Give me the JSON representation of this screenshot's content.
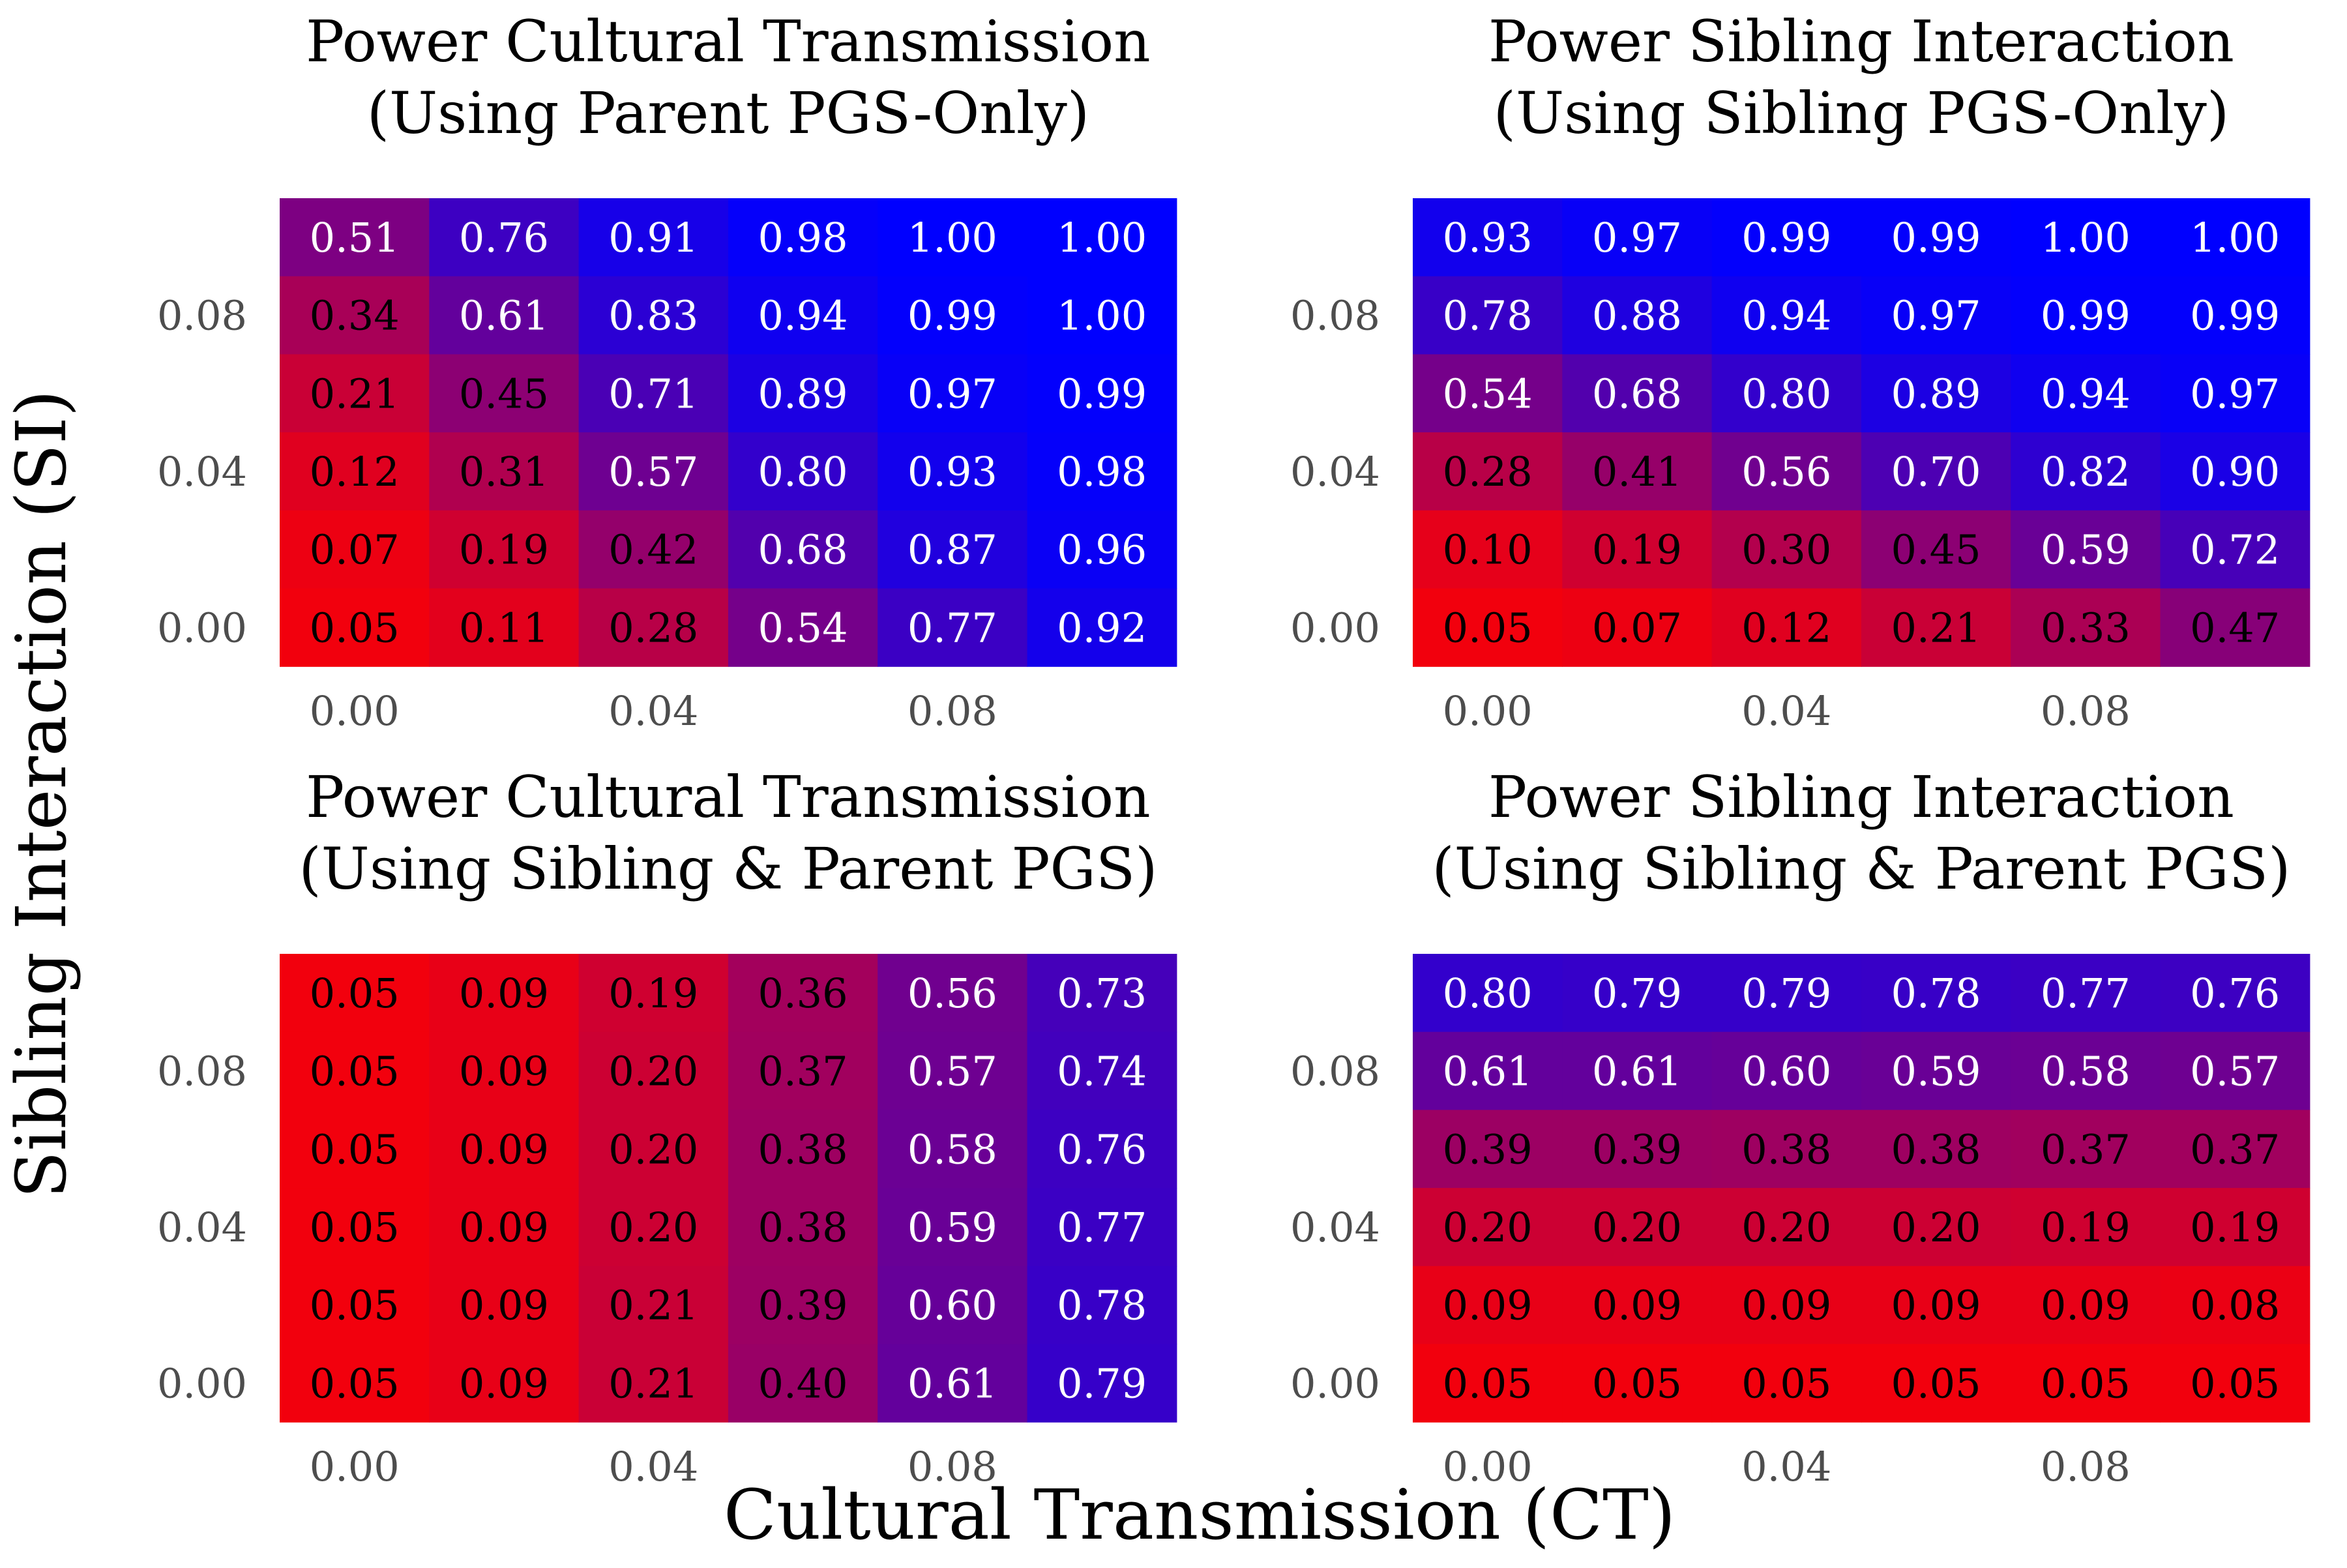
{
  "figure": {
    "xlabel": "Cultural Transmission (CT)",
    "ylabel": "Sibling Interaction (SI)"
  },
  "chart_data": [
    {
      "type": "heatmap",
      "title": "Power Cultural Transmission",
      "subtitle": "(Using Parent PGS-Only)",
      "xlabel": "Cultural Transmission (CT)",
      "ylabel": "Sibling Interaction (SI)",
      "x_ticks": [
        "0.00",
        "0.04",
        "0.08"
      ],
      "y_ticks": [
        "0.00",
        "0.04",
        "0.08"
      ],
      "x_values": [
        0.0,
        0.02,
        0.04,
        0.06,
        0.08,
        0.1
      ],
      "y_values": [
        0.0,
        0.02,
        0.04,
        0.06,
        0.08,
        0.1
      ],
      "colorscale": {
        "low": "#ff0000",
        "high": "#0000ff",
        "range": [
          0,
          1
        ]
      },
      "values": [
        [
          0.51,
          0.76,
          0.91,
          0.98,
          1.0,
          1.0
        ],
        [
          0.34,
          0.61,
          0.83,
          0.94,
          0.99,
          1.0
        ],
        [
          0.21,
          0.45,
          0.71,
          0.89,
          0.97,
          0.99
        ],
        [
          0.12,
          0.31,
          0.57,
          0.8,
          0.93,
          0.98
        ],
        [
          0.07,
          0.19,
          0.42,
          0.68,
          0.87,
          0.96
        ],
        [
          0.05,
          0.11,
          0.28,
          0.54,
          0.77,
          0.92
        ]
      ],
      "labels": [
        [
          "0.51",
          "0.76",
          "0.91",
          "0.98",
          "1.00",
          "1.00"
        ],
        [
          "0.34",
          "0.61",
          "0.83",
          "0.94",
          "0.99",
          "1.00"
        ],
        [
          "0.21",
          "0.45",
          "0.71",
          "0.89",
          "0.97",
          "0.99"
        ],
        [
          "0.12",
          "0.31",
          "0.57",
          "0.80",
          "0.93",
          "0.98"
        ],
        [
          "0.07",
          "0.19",
          "0.42",
          "0.68",
          "0.87",
          "0.96"
        ],
        [
          "0.05",
          "0.11",
          "0.28",
          "0.54",
          "0.77",
          "0.92"
        ]
      ]
    },
    {
      "type": "heatmap",
      "title": "Power Sibling Interaction",
      "subtitle": "(Using Sibling PGS-Only)",
      "xlabel": "Cultural Transmission (CT)",
      "ylabel": "Sibling Interaction (SI)",
      "x_ticks": [
        "0.00",
        "0.04",
        "0.08"
      ],
      "y_ticks": [
        "0.00",
        "0.04",
        "0.08"
      ],
      "x_values": [
        0.0,
        0.02,
        0.04,
        0.06,
        0.08,
        0.1
      ],
      "y_values": [
        0.0,
        0.02,
        0.04,
        0.06,
        0.08,
        0.1
      ],
      "colorscale": {
        "low": "#ff0000",
        "high": "#0000ff",
        "range": [
          0,
          1
        ]
      },
      "values": [
        [
          0.93,
          0.97,
          0.99,
          0.99,
          1.0,
          1.0
        ],
        [
          0.78,
          0.88,
          0.94,
          0.97,
          0.99,
          0.99
        ],
        [
          0.54,
          0.68,
          0.8,
          0.89,
          0.94,
          0.97
        ],
        [
          0.28,
          0.41,
          0.56,
          0.7,
          0.82,
          0.9
        ],
        [
          0.1,
          0.19,
          0.3,
          0.45,
          0.59,
          0.72
        ],
        [
          0.05,
          0.07,
          0.12,
          0.21,
          0.33,
          0.47
        ]
      ],
      "labels": [
        [
          "0.93",
          "0.97",
          "0.99",
          "0.99",
          "1.00",
          "1.00"
        ],
        [
          "0.78",
          "0.88",
          "0.94",
          "0.97",
          "0.99",
          "0.99"
        ],
        [
          "0.54",
          "0.68",
          "0.80",
          "0.89",
          "0.94",
          "0.97"
        ],
        [
          "0.28",
          "0.41",
          "0.56",
          "0.70",
          "0.82",
          "0.90"
        ],
        [
          "0.10",
          "0.19",
          "0.30",
          "0.45",
          "0.59",
          "0.72"
        ],
        [
          "0.05",
          "0.07",
          "0.12",
          "0.21",
          "0.33",
          "0.47"
        ]
      ]
    },
    {
      "type": "heatmap",
      "title": "Power Cultural Transmission",
      "subtitle": "(Using Sibling & Parent PGS)",
      "xlabel": "Cultural Transmission (CT)",
      "ylabel": "Sibling Interaction (SI)",
      "x_ticks": [
        "0.00",
        "0.04",
        "0.08"
      ],
      "y_ticks": [
        "0.00",
        "0.04",
        "0.08"
      ],
      "x_values": [
        0.0,
        0.02,
        0.04,
        0.06,
        0.08,
        0.1
      ],
      "y_values": [
        0.0,
        0.02,
        0.04,
        0.06,
        0.08,
        0.1
      ],
      "colorscale": {
        "low": "#ff0000",
        "high": "#0000ff",
        "range": [
          0,
          1
        ]
      },
      "values": [
        [
          0.05,
          0.09,
          0.19,
          0.36,
          0.56,
          0.73
        ],
        [
          0.05,
          0.09,
          0.2,
          0.37,
          0.57,
          0.74
        ],
        [
          0.05,
          0.09,
          0.2,
          0.38,
          0.58,
          0.76
        ],
        [
          0.05,
          0.09,
          0.2,
          0.38,
          0.59,
          0.77
        ],
        [
          0.05,
          0.09,
          0.21,
          0.39,
          0.6,
          0.78
        ],
        [
          0.05,
          0.09,
          0.21,
          0.4,
          0.61,
          0.79
        ]
      ],
      "labels": [
        [
          "0.05",
          "0.09",
          "0.19",
          "0.36",
          "0.56",
          "0.73"
        ],
        [
          "0.05",
          "0.09",
          "0.20",
          "0.37",
          "0.57",
          "0.74"
        ],
        [
          "0.05",
          "0.09",
          "0.20",
          "0.38",
          "0.58",
          "0.76"
        ],
        [
          "0.05",
          "0.09",
          "0.20",
          "0.38",
          "0.59",
          "0.77"
        ],
        [
          "0.05",
          "0.09",
          "0.21",
          "0.39",
          "0.60",
          "0.78"
        ],
        [
          "0.05",
          "0.09",
          "0.21",
          "0.40",
          "0.61",
          "0.79"
        ]
      ]
    },
    {
      "type": "heatmap",
      "title": "Power Sibling Interaction",
      "subtitle": "(Using Sibling & Parent PGS)",
      "xlabel": "Cultural Transmission (CT)",
      "ylabel": "Sibling Interaction (SI)",
      "x_ticks": [
        "0.00",
        "0.04",
        "0.08"
      ],
      "y_ticks": [
        "0.00",
        "0.04",
        "0.08"
      ],
      "x_values": [
        0.0,
        0.02,
        0.04,
        0.06,
        0.08,
        0.1
      ],
      "y_values": [
        0.0,
        0.02,
        0.04,
        0.06,
        0.08,
        0.1
      ],
      "colorscale": {
        "low": "#ff0000",
        "high": "#0000ff",
        "range": [
          0,
          1
        ]
      },
      "values": [
        [
          0.8,
          0.79,
          0.79,
          0.78,
          0.77,
          0.76
        ],
        [
          0.61,
          0.61,
          0.6,
          0.59,
          0.58,
          0.57
        ],
        [
          0.39,
          0.39,
          0.38,
          0.38,
          0.37,
          0.37
        ],
        [
          0.2,
          0.2,
          0.2,
          0.2,
          0.19,
          0.19
        ],
        [
          0.09,
          0.09,
          0.09,
          0.09,
          0.09,
          0.08
        ],
        [
          0.05,
          0.05,
          0.05,
          0.05,
          0.05,
          0.05
        ]
      ],
      "labels": [
        [
          "0.80",
          "0.79",
          "0.79",
          "0.78",
          "0.77",
          "0.76"
        ],
        [
          "0.61",
          "0.61",
          "0.60",
          "0.59",
          "0.58",
          "0.57"
        ],
        [
          "0.39",
          "0.39",
          "0.38",
          "0.38",
          "0.37",
          "0.37"
        ],
        [
          "0.20",
          "0.20",
          "0.20",
          "0.20",
          "0.19",
          "0.19"
        ],
        [
          "0.09",
          "0.09",
          "0.09",
          "0.09",
          "0.09",
          "0.08"
        ],
        [
          "0.05",
          "0.05",
          "0.05",
          "0.05",
          "0.05",
          "0.05"
        ]
      ]
    }
  ]
}
